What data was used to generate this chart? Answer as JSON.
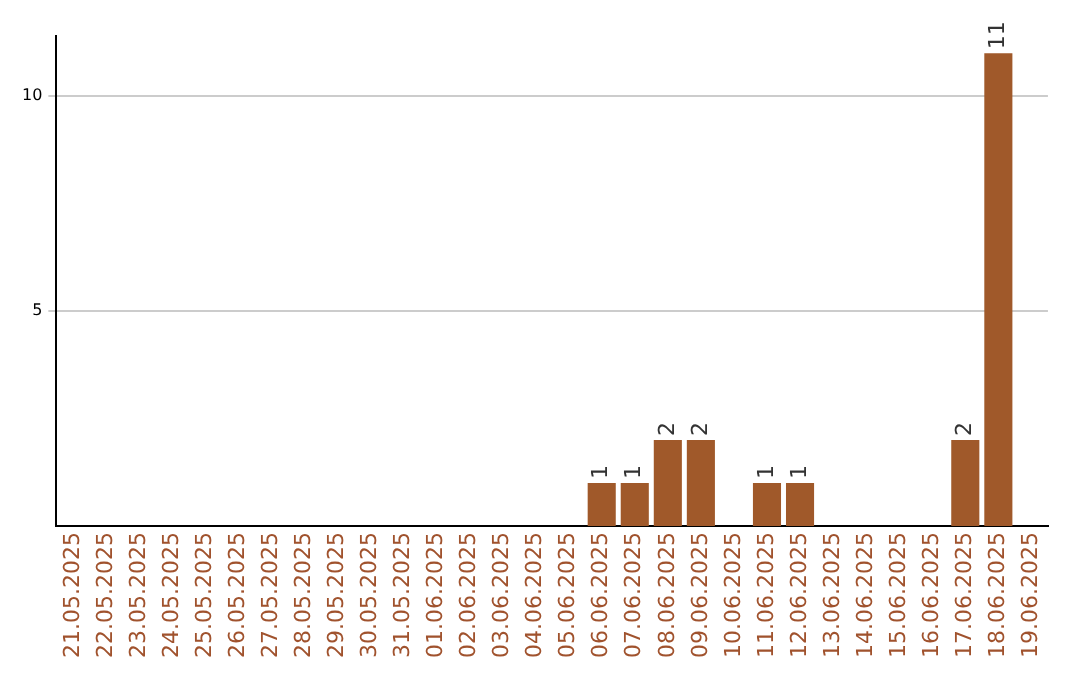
{
  "chart_data": {
    "type": "bar",
    "categories": [
      "21.05.2025",
      "22.05.2025",
      "23.05.2025",
      "24.05.2025",
      "25.05.2025",
      "26.05.2025",
      "27.05.2025",
      "28.05.2025",
      "29.05.2025",
      "30.05.2025",
      "31.05.2025",
      "01.06.2025",
      "02.06.2025",
      "03.06.2025",
      "04.06.2025",
      "05.06.2025",
      "06.06.2025",
      "07.06.2025",
      "08.06.2025",
      "09.06.2025",
      "10.06.2025",
      "11.06.2025",
      "12.06.2025",
      "13.06.2025",
      "14.06.2025",
      "15.06.2025",
      "16.06.2025",
      "17.06.2025",
      "18.06.2025",
      "19.06.2025"
    ],
    "values": [
      0,
      0,
      0,
      0,
      0,
      0,
      0,
      0,
      0,
      0,
      0,
      0,
      0,
      0,
      0,
      0,
      1,
      1,
      2,
      2,
      0,
      1,
      1,
      0,
      0,
      0,
      0,
      2,
      11,
      0
    ],
    "value_labels": [
      null,
      null,
      null,
      null,
      null,
      null,
      null,
      null,
      null,
      null,
      null,
      null,
      null,
      null,
      null,
      null,
      "1",
      "1",
      "2",
      "2",
      null,
      "1",
      "1",
      null,
      null,
      null,
      null,
      "2",
      "11",
      null
    ],
    "color": "#a0592a",
    "ylim": [
      0,
      11.4
    ],
    "yticks": [
      5,
      10
    ],
    "grid": "y",
    "legend": false
  }
}
